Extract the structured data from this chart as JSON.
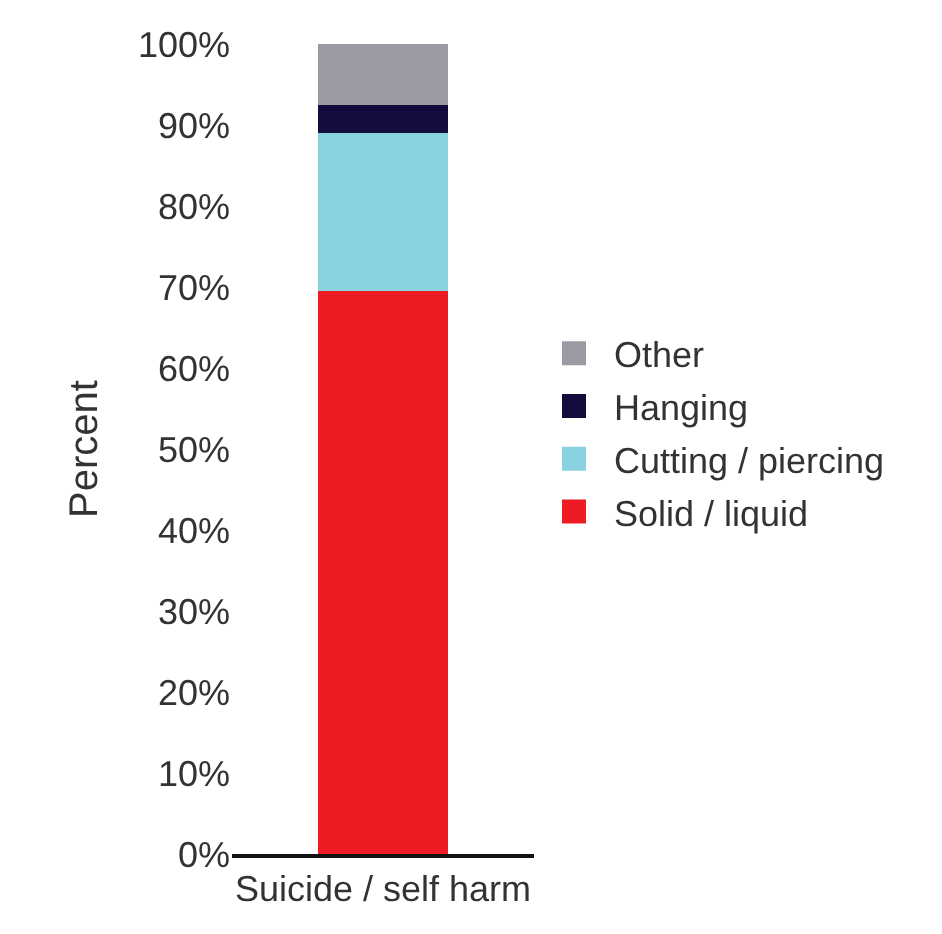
{
  "chart_data": {
    "type": "bar",
    "stacked": true,
    "ylabel": "Percent",
    "categories": [
      "Suicide / self harm"
    ],
    "series": [
      {
        "name": "Solid / liquid",
        "color": "#ed1c24",
        "values": [
          69.5
        ]
      },
      {
        "name": "Cutting / piercing",
        "color": "#89d3e0",
        "values": [
          19.5
        ]
      },
      {
        "name": "Hanging",
        "color": "#130c3f",
        "values": [
          3.5
        ]
      },
      {
        "name": "Other",
        "color": "#9a9aa2",
        "values": [
          7.5
        ]
      }
    ],
    "ylim": [
      0,
      100
    ],
    "yticks": [
      {
        "value": 0,
        "label": "0%"
      },
      {
        "value": 10,
        "label": "10%"
      },
      {
        "value": 20,
        "label": "20%"
      },
      {
        "value": 30,
        "label": "30%"
      },
      {
        "value": 40,
        "label": "40%"
      },
      {
        "value": 50,
        "label": "50%"
      },
      {
        "value": 60,
        "label": "60%"
      },
      {
        "value": 70,
        "label": "70%"
      },
      {
        "value": 80,
        "label": "80%"
      },
      {
        "value": 90,
        "label": "90%"
      },
      {
        "value": 100,
        "label": "100%"
      }
    ],
    "legend": "right"
  }
}
